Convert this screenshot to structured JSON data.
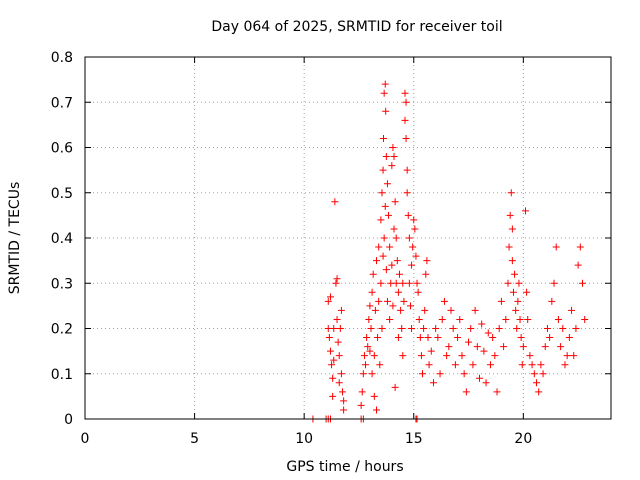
{
  "chart_data": {
    "type": "scatter",
    "title": "Day 064 of 2025, SRMTID for receiver toil",
    "xlabel": "GPS time / hours",
    "ylabel": "SRMTID / TECUs",
    "xlim": [
      0,
      24
    ],
    "ylim": [
      0,
      0.8
    ],
    "xticks": [
      0,
      5,
      10,
      15,
      20
    ],
    "xtick_labels": [
      "0",
      "5",
      "10",
      "15",
      "20"
    ],
    "yticks": [
      0,
      0.1,
      0.2,
      0.3,
      0.4,
      0.5,
      0.6,
      0.7,
      0.8
    ],
    "ytick_labels": [
      "0",
      "0.1",
      "0.2",
      "0.3",
      "0.4",
      "0.5",
      "0.6",
      "0.7",
      "0.8"
    ],
    "grid": true,
    "marker": "+",
    "color": "#ff0000",
    "series": [
      {
        "name": "SRMTID",
        "points": [
          [
            10.4,
            0.0
          ],
          [
            11.0,
            0.0
          ],
          [
            11.1,
            0.0
          ],
          [
            11.2,
            0.0
          ],
          [
            12.6,
            0.0
          ],
          [
            12.7,
            0.0
          ],
          [
            15.1,
            0.0
          ],
          [
            15.15,
            0.0
          ],
          [
            11.1,
            0.26
          ],
          [
            11.1,
            0.2
          ],
          [
            11.15,
            0.18
          ],
          [
            11.2,
            0.27
          ],
          [
            11.2,
            0.15
          ],
          [
            11.25,
            0.12
          ],
          [
            11.3,
            0.09
          ],
          [
            11.3,
            0.05
          ],
          [
            11.35,
            0.2
          ],
          [
            11.35,
            0.13
          ],
          [
            11.4,
            0.48
          ],
          [
            11.45,
            0.3
          ],
          [
            11.5,
            0.31
          ],
          [
            11.5,
            0.22
          ],
          [
            11.55,
            0.17
          ],
          [
            11.6,
            0.14
          ],
          [
            11.6,
            0.08
          ],
          [
            11.65,
            0.2
          ],
          [
            11.7,
            0.24
          ],
          [
            11.7,
            0.1
          ],
          [
            11.75,
            0.06
          ],
          [
            11.8,
            0.04
          ],
          [
            11.8,
            0.02
          ],
          [
            12.6,
            0.03
          ],
          [
            12.65,
            0.06
          ],
          [
            12.7,
            0.1
          ],
          [
            12.75,
            0.14
          ],
          [
            12.8,
            0.12
          ],
          [
            12.85,
            0.18
          ],
          [
            12.9,
            0.16
          ],
          [
            12.95,
            0.22
          ],
          [
            13.0,
            0.15
          ],
          [
            13.0,
            0.25
          ],
          [
            13.05,
            0.2
          ],
          [
            13.1,
            0.28
          ],
          [
            13.1,
            0.1
          ],
          [
            13.15,
            0.32
          ],
          [
            13.2,
            0.14
          ],
          [
            13.2,
            0.05
          ],
          [
            13.25,
            0.24
          ],
          [
            13.3,
            0.02
          ],
          [
            13.3,
            0.35
          ],
          [
            13.35,
            0.18
          ],
          [
            13.4,
            0.38
          ],
          [
            13.4,
            0.26
          ],
          [
            13.45,
            0.12
          ],
          [
            13.5,
            0.44
          ],
          [
            13.5,
            0.3
          ],
          [
            13.55,
            0.5
          ],
          [
            13.55,
            0.2
          ],
          [
            13.6,
            0.55
          ],
          [
            13.6,
            0.36
          ],
          [
            13.62,
            0.62
          ],
          [
            13.65,
            0.72
          ],
          [
            13.65,
            0.4
          ],
          [
            13.7,
            0.74
          ],
          [
            13.7,
            0.47
          ],
          [
            13.72,
            0.68
          ],
          [
            13.75,
            0.58
          ],
          [
            13.75,
            0.33
          ],
          [
            13.8,
            0.52
          ],
          [
            13.8,
            0.26
          ],
          [
            13.85,
            0.45
          ],
          [
            13.9,
            0.38
          ],
          [
            13.9,
            0.22
          ],
          [
            13.95,
            0.3
          ],
          [
            14.0,
            0.56
          ],
          [
            14.0,
            0.34
          ],
          [
            14.05,
            0.6
          ],
          [
            14.05,
            0.25
          ],
          [
            14.1,
            0.58
          ],
          [
            14.1,
            0.42
          ],
          [
            14.15,
            0.48
          ],
          [
            14.15,
            0.07
          ],
          [
            14.2,
            0.4
          ],
          [
            14.2,
            0.3
          ],
          [
            14.25,
            0.35
          ],
          [
            14.3,
            0.28
          ],
          [
            14.3,
            0.18
          ],
          [
            14.35,
            0.32
          ],
          [
            14.4,
            0.24
          ],
          [
            14.45,
            0.2
          ],
          [
            14.5,
            0.3
          ],
          [
            14.5,
            0.14
          ],
          [
            14.55,
            0.26
          ],
          [
            14.6,
            0.72
          ],
          [
            14.6,
            0.66
          ],
          [
            14.65,
            0.7
          ],
          [
            14.65,
            0.62
          ],
          [
            14.7,
            0.55
          ],
          [
            14.7,
            0.5
          ],
          [
            14.75,
            0.45
          ],
          [
            14.8,
            0.4
          ],
          [
            14.8,
            0.3
          ],
          [
            14.85,
            0.25
          ],
          [
            14.9,
            0.2
          ],
          [
            14.9,
            0.34
          ],
          [
            14.95,
            0.38
          ],
          [
            15.0,
            0.44
          ],
          [
            15.05,
            0.42
          ],
          [
            15.1,
            0.36
          ],
          [
            15.15,
            0.3
          ],
          [
            15.2,
            0.28
          ],
          [
            15.25,
            0.22
          ],
          [
            15.3,
            0.18
          ],
          [
            15.35,
            0.14
          ],
          [
            15.4,
            0.1
          ],
          [
            15.45,
            0.2
          ],
          [
            15.5,
            0.24
          ],
          [
            15.55,
            0.32
          ],
          [
            15.6,
            0.35
          ],
          [
            15.65,
            0.18
          ],
          [
            15.7,
            0.12
          ],
          [
            15.8,
            0.15
          ],
          [
            15.9,
            0.08
          ],
          [
            16.0,
            0.2
          ],
          [
            16.1,
            0.18
          ],
          [
            16.2,
            0.1
          ],
          [
            16.3,
            0.22
          ],
          [
            16.4,
            0.26
          ],
          [
            16.5,
            0.14
          ],
          [
            16.6,
            0.16
          ],
          [
            16.7,
            0.24
          ],
          [
            16.8,
            0.2
          ],
          [
            16.9,
            0.12
          ],
          [
            17.0,
            0.18
          ],
          [
            17.1,
            0.22
          ],
          [
            17.2,
            0.14
          ],
          [
            17.3,
            0.1
          ],
          [
            17.4,
            0.06
          ],
          [
            17.5,
            0.17
          ],
          [
            17.6,
            0.2
          ],
          [
            17.7,
            0.12
          ],
          [
            17.8,
            0.24
          ],
          [
            17.9,
            0.16
          ],
          [
            18.0,
            0.09
          ],
          [
            18.1,
            0.21
          ],
          [
            18.2,
            0.15
          ],
          [
            18.3,
            0.08
          ],
          [
            18.4,
            0.19
          ],
          [
            18.5,
            0.12
          ],
          [
            18.6,
            0.18
          ],
          [
            18.7,
            0.14
          ],
          [
            18.8,
            0.06
          ],
          [
            18.9,
            0.2
          ],
          [
            19.0,
            0.26
          ],
          [
            19.1,
            0.16
          ],
          [
            19.2,
            0.22
          ],
          [
            19.3,
            0.3
          ],
          [
            19.35,
            0.38
          ],
          [
            19.4,
            0.45
          ],
          [
            19.45,
            0.5
          ],
          [
            19.5,
            0.42
          ],
          [
            19.5,
            0.35
          ],
          [
            19.55,
            0.28
          ],
          [
            19.6,
            0.32
          ],
          [
            19.65,
            0.24
          ],
          [
            19.7,
            0.2
          ],
          [
            19.75,
            0.26
          ],
          [
            19.8,
            0.3
          ],
          [
            19.85,
            0.22
          ],
          [
            19.9,
            0.18
          ],
          [
            19.95,
            0.12
          ],
          [
            20.0,
            0.16
          ],
          [
            20.1,
            0.46
          ],
          [
            20.15,
            0.28
          ],
          [
            20.2,
            0.22
          ],
          [
            20.3,
            0.14
          ],
          [
            20.4,
            0.12
          ],
          [
            20.5,
            0.1
          ],
          [
            20.6,
            0.08
          ],
          [
            20.7,
            0.06
          ],
          [
            20.8,
            0.12
          ],
          [
            20.9,
            0.1
          ],
          [
            21.0,
            0.16
          ],
          [
            21.1,
            0.2
          ],
          [
            21.2,
            0.18
          ],
          [
            21.3,
            0.26
          ],
          [
            21.4,
            0.3
          ],
          [
            21.5,
            0.38
          ],
          [
            21.6,
            0.22
          ],
          [
            21.7,
            0.16
          ],
          [
            21.8,
            0.2
          ],
          [
            21.9,
            0.12
          ],
          [
            22.0,
            0.14
          ],
          [
            22.1,
            0.18
          ],
          [
            22.2,
            0.24
          ],
          [
            22.3,
            0.14
          ],
          [
            22.4,
            0.2
          ],
          [
            22.5,
            0.34
          ],
          [
            22.6,
            0.38
          ],
          [
            22.7,
            0.3
          ],
          [
            22.8,
            0.22
          ]
        ]
      }
    ]
  }
}
